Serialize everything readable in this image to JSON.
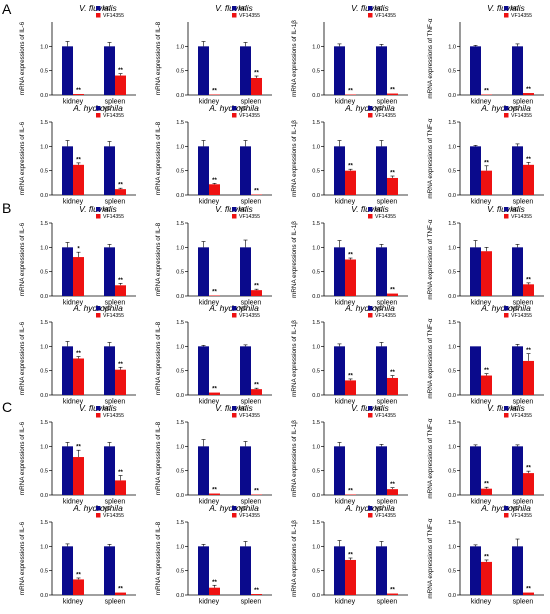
{
  "panel_letters": [
    "A",
    "B",
    "C"
  ],
  "colors": {
    "NC": "#0a0a8c",
    "VF14355": "#ee1111"
  },
  "chart_data": [
    {
      "panel": "A",
      "title": "V. fluvialis",
      "ylabel": "mRNA expressions of IL-6",
      "categories": [
        "kidney",
        "spleen"
      ],
      "series": [
        {
          "name": "NC",
          "values": [
            1.0,
            1.0
          ]
        },
        {
          "name": "VF14355",
          "values": [
            0.02,
            0.4
          ]
        }
      ],
      "errors": [
        [
          0.1,
          0.08
        ],
        [
          0.01,
          0.04
        ]
      ],
      "sig": [
        "**",
        "**"
      ],
      "yticks": [
        "0.0",
        "0.5",
        "1.0"
      ],
      "ylim": [
        0,
        1.5
      ]
    },
    {
      "panel": "A",
      "title": "V. fluvialis",
      "ylabel": "mRNA expressions of IL-8",
      "categories": [
        "kidney",
        "spleen"
      ],
      "series": [
        {
          "name": "NC",
          "values": [
            1.0,
            1.0
          ]
        },
        {
          "name": "VF14355",
          "values": [
            0.01,
            0.35
          ]
        }
      ],
      "errors": [
        [
          0.1,
          0.08
        ],
        [
          0.01,
          0.04
        ]
      ],
      "sig": [
        "**",
        "**"
      ],
      "yticks": [
        "0.0",
        "0.5",
        "1.0"
      ],
      "ylim": [
        0,
        1.5
      ]
    },
    {
      "panel": "A",
      "title": "V. fluvialis",
      "ylabel": "mRNA expressions of IL-1β",
      "categories": [
        "kidney",
        "spleen"
      ],
      "series": [
        {
          "name": "NC",
          "values": [
            1.0,
            1.0
          ]
        },
        {
          "name": "VF14355",
          "values": [
            0.01,
            0.03
          ]
        }
      ],
      "errors": [
        [
          0.05,
          0.04
        ],
        [
          0.01,
          0.01
        ]
      ],
      "sig": [
        "**",
        "**"
      ],
      "yticks": [
        "0.0",
        "0.5",
        "1.0"
      ],
      "ylim": [
        0,
        1.5
      ]
    },
    {
      "panel": "A",
      "title": "V. fluvialis",
      "ylabel": "mRNA expressions of TNF-α",
      "categories": [
        "kidney",
        "spleen"
      ],
      "series": [
        {
          "name": "NC",
          "values": [
            1.0,
            1.0
          ]
        },
        {
          "name": "VF14355",
          "values": [
            0.01,
            0.04
          ]
        }
      ],
      "errors": [
        [
          0.02,
          0.05
        ],
        [
          0.01,
          0.01
        ]
      ],
      "sig": [
        "**",
        "**"
      ],
      "yticks": [
        "0.0",
        "0.5",
        "1.0"
      ],
      "ylim": [
        0,
        1.5
      ]
    },
    {
      "panel": "A",
      "title": "A. hydrophila",
      "ylabel": "mRNA expressions of IL-6",
      "categories": [
        "kidney",
        "spleen"
      ],
      "series": [
        {
          "name": "NC",
          "values": [
            1.0,
            1.0
          ]
        },
        {
          "name": "VF14355",
          "values": [
            0.62,
            0.12
          ]
        }
      ],
      "errors": [
        [
          0.12,
          0.1
        ],
        [
          0.04,
          0.02
        ]
      ],
      "sig": [
        "**",
        "**"
      ],
      "yticks": [
        "0.0",
        "0.5",
        "1.0",
        "1.5"
      ],
      "ylim": [
        0,
        1.5
      ]
    },
    {
      "panel": "A",
      "title": "A. hydrophila",
      "ylabel": "mRNA expressions of IL-8",
      "categories": [
        "kidney",
        "spleen"
      ],
      "series": [
        {
          "name": "NC",
          "values": [
            1.0,
            1.0
          ]
        },
        {
          "name": "VF14355",
          "values": [
            0.22,
            0.01
          ]
        }
      ],
      "errors": [
        [
          0.12,
          0.12
        ],
        [
          0.02,
          0.01
        ]
      ],
      "sig": [
        "**",
        "**"
      ],
      "yticks": [
        "0.0",
        "0.5",
        "1.0",
        "1.5"
      ],
      "ylim": [
        0,
        1.5
      ]
    },
    {
      "panel": "A",
      "title": "A. hydrophila",
      "ylabel": "mRNA expressions of IL-1β",
      "categories": [
        "kidney",
        "spleen"
      ],
      "series": [
        {
          "name": "NC",
          "values": [
            1.0,
            1.0
          ]
        },
        {
          "name": "VF14355",
          "values": [
            0.5,
            0.35
          ]
        }
      ],
      "errors": [
        [
          0.12,
          0.12
        ],
        [
          0.03,
          0.04
        ]
      ],
      "sig": [
        "**",
        "**"
      ],
      "yticks": [
        "0.0",
        "0.5",
        "1.0",
        "1.5"
      ],
      "ylim": [
        0,
        1.5
      ]
    },
    {
      "panel": "A",
      "title": "A. hydrophila",
      "ylabel": "mRNA expressions of TNF-α",
      "categories": [
        "kidney",
        "spleen"
      ],
      "series": [
        {
          "name": "NC",
          "values": [
            1.0,
            1.0
          ]
        },
        {
          "name": "VF14355",
          "values": [
            0.5,
            0.62
          ]
        }
      ],
      "errors": [
        [
          0.02,
          0.05
        ],
        [
          0.1,
          0.05
        ]
      ],
      "sig": [
        "**",
        "**"
      ],
      "yticks": [
        "0.0",
        "0.5",
        "1.0",
        "1.5"
      ],
      "ylim": [
        0,
        1.5
      ]
    },
    {
      "panel": "B",
      "title": "V. fluvialis",
      "ylabel": "mRNA expressions of IL-6",
      "categories": [
        "kidney",
        "spleen"
      ],
      "series": [
        {
          "name": "NC",
          "values": [
            1.0,
            1.0
          ]
        },
        {
          "name": "VF14355",
          "values": [
            0.8,
            0.22
          ]
        }
      ],
      "errors": [
        [
          0.1,
          0.06
        ],
        [
          0.1,
          0.04
        ]
      ],
      "sig": [
        "*",
        "**"
      ],
      "yticks": [
        "0.0",
        "0.5",
        "1.0",
        "1.5"
      ],
      "ylim": [
        0,
        1.5
      ]
    },
    {
      "panel": "B",
      "title": "V. fluvialis",
      "ylabel": "mRNA expressions of IL-8",
      "categories": [
        "kidney",
        "spleen"
      ],
      "series": [
        {
          "name": "NC",
          "values": [
            1.0,
            1.0
          ]
        },
        {
          "name": "VF14355",
          "values": [
            0.01,
            0.12
          ]
        }
      ],
      "errors": [
        [
          0.12,
          0.15
        ],
        [
          0.01,
          0.02
        ]
      ],
      "sig": [
        "**",
        "**"
      ],
      "yticks": [
        "0.0",
        "0.5",
        "1.0",
        "1.5"
      ],
      "ylim": [
        0,
        1.5
      ]
    },
    {
      "panel": "B",
      "title": "V. fluvialis",
      "ylabel": "mRNA expressions of IL-1β",
      "categories": [
        "kidney",
        "spleen"
      ],
      "series": [
        {
          "name": "NC",
          "values": [
            1.0,
            1.0
          ]
        },
        {
          "name": "VF14355",
          "values": [
            0.75,
            0.05
          ]
        }
      ],
      "errors": [
        [
          0.14,
          0.06
        ],
        [
          0.03,
          0.01
        ]
      ],
      "sig": [
        "**",
        "**"
      ],
      "yticks": [
        "0.0",
        "0.5",
        "1.0",
        "1.5"
      ],
      "ylim": [
        0,
        1.5
      ]
    },
    {
      "panel": "B",
      "title": "V. fluvialis",
      "ylabel": "mRNA expressions of TNF-α",
      "categories": [
        "kidney",
        "spleen"
      ],
      "series": [
        {
          "name": "NC",
          "values": [
            1.0,
            1.0
          ]
        },
        {
          "name": "VF14355",
          "values": [
            0.92,
            0.24
          ]
        }
      ],
      "errors": [
        [
          0.14,
          0.06
        ],
        [
          0.08,
          0.03
        ]
      ],
      "sig": [
        "",
        "**"
      ],
      "yticks": [
        "0.0",
        "0.5",
        "1.0",
        "1.5"
      ],
      "ylim": [
        0,
        1.5
      ]
    },
    {
      "panel": "B",
      "title": "A. hydrophila",
      "ylabel": "mRNA expressions of IL-6",
      "categories": [
        "kidney",
        "spleen"
      ],
      "series": [
        {
          "name": "NC",
          "values": [
            1.0,
            1.0
          ]
        },
        {
          "name": "VF14355",
          "values": [
            0.75,
            0.52
          ]
        }
      ],
      "errors": [
        [
          0.1,
          0.08
        ],
        [
          0.04,
          0.05
        ]
      ],
      "sig": [
        "**",
        "**"
      ],
      "yticks": [
        "0.0",
        "0.5",
        "1.0",
        "1.5"
      ],
      "ylim": [
        0,
        1.5
      ]
    },
    {
      "panel": "B",
      "title": "A. hydrophila",
      "ylabel": "mRNA expressions of IL-8",
      "categories": [
        "kidney",
        "spleen"
      ],
      "series": [
        {
          "name": "NC",
          "values": [
            1.0,
            1.0
          ]
        },
        {
          "name": "VF14355",
          "values": [
            0.05,
            0.12
          ]
        }
      ],
      "errors": [
        [
          0.02,
          0.03
        ],
        [
          0.01,
          0.02
        ]
      ],
      "sig": [
        "**",
        "**"
      ],
      "yticks": [
        "0.0",
        "0.5",
        "1.0",
        "1.5"
      ],
      "ylim": [
        0,
        1.5
      ]
    },
    {
      "panel": "B",
      "title": "A. hydrophila",
      "ylabel": "mRNA expressions of IL-1β",
      "categories": [
        "kidney",
        "spleen"
      ],
      "series": [
        {
          "name": "NC",
          "values": [
            1.0,
            1.0
          ]
        },
        {
          "name": "VF14355",
          "values": [
            0.3,
            0.35
          ]
        }
      ],
      "errors": [
        [
          0.05,
          0.08
        ],
        [
          0.03,
          0.05
        ]
      ],
      "sig": [
        "**",
        "**"
      ],
      "yticks": [
        "0.0",
        "0.5",
        "1.0",
        "1.5"
      ],
      "ylim": [
        0,
        1.5
      ]
    },
    {
      "panel": "B",
      "title": "A. hydrophila",
      "ylabel": "mRNA expressions of TNF-α",
      "categories": [
        "kidney",
        "spleen"
      ],
      "series": [
        {
          "name": "NC",
          "values": [
            1.0,
            1.0
          ]
        },
        {
          "name": "VF14355",
          "values": [
            0.4,
            0.7
          ]
        }
      ],
      "errors": [
        [
          0.01,
          0.04
        ],
        [
          0.04,
          0.15
        ]
      ],
      "sig": [
        "**",
        "**"
      ],
      "yticks": [
        "0.0",
        "0.5",
        "1.0",
        "1.5"
      ],
      "ylim": [
        0,
        1.5
      ]
    },
    {
      "panel": "C",
      "title": "V. fluvialis",
      "ylabel": "mRNA expressions of IL-6",
      "categories": [
        "kidney",
        "spleen"
      ],
      "series": [
        {
          "name": "NC",
          "values": [
            1.0,
            1.0
          ]
        },
        {
          "name": "VF14355",
          "values": [
            0.78,
            0.3
          ]
        }
      ],
      "errors": [
        [
          0.08,
          0.08
        ],
        [
          0.14,
          0.1
        ]
      ],
      "sig": [
        "**",
        "**"
      ],
      "yticks": [
        "0.0",
        "0.5",
        "1.0",
        "1.5"
      ],
      "ylim": [
        0,
        1.5
      ]
    },
    {
      "panel": "C",
      "title": "V. fluvialis",
      "ylabel": "mRNA expressions of IL-8",
      "categories": [
        "kidney",
        "spleen"
      ],
      "series": [
        {
          "name": "NC",
          "values": [
            1.0,
            1.0
          ]
        },
        {
          "name": "VF14355",
          "values": [
            0.03,
            0.01
          ]
        }
      ],
      "errors": [
        [
          0.14,
          0.1
        ],
        [
          0.01,
          0.01
        ]
      ],
      "sig": [
        "**",
        "**"
      ],
      "yticks": [
        "0.0",
        "0.5",
        "1.0",
        "1.5"
      ],
      "ylim": [
        0,
        1.5
      ]
    },
    {
      "panel": "C",
      "title": "V. fluvialis",
      "ylabel": "mRNA expressions of IL-1β",
      "categories": [
        "kidney",
        "spleen"
      ],
      "series": [
        {
          "name": "NC",
          "values": [
            1.0,
            1.0
          ]
        },
        {
          "name": "VF14355",
          "values": [
            0.01,
            0.12
          ]
        }
      ],
      "errors": [
        [
          0.08,
          0.04
        ],
        [
          0.01,
          0.03
        ]
      ],
      "sig": [
        "**",
        "**"
      ],
      "yticks": [
        "0.0",
        "0.5",
        "1.0",
        "1.5"
      ],
      "ylim": [
        0,
        1.5
      ]
    },
    {
      "panel": "C",
      "title": "V. fluvialis",
      "ylabel": "mRNA expressions of TNF-α",
      "categories": [
        "kidney",
        "spleen"
      ],
      "series": [
        {
          "name": "NC",
          "values": [
            1.0,
            1.0
          ]
        },
        {
          "name": "VF14355",
          "values": [
            0.13,
            0.45
          ]
        }
      ],
      "errors": [
        [
          0.03,
          0.03
        ],
        [
          0.03,
          0.04
        ]
      ],
      "sig": [
        "**",
        "**"
      ],
      "yticks": [
        "0.0",
        "0.5",
        "1.0",
        "1.5"
      ],
      "ylim": [
        0,
        1.5
      ]
    },
    {
      "panel": "C",
      "title": "A. hydrophila",
      "ylabel": "mRNA expressions of IL-6",
      "categories": [
        "kidney",
        "spleen"
      ],
      "series": [
        {
          "name": "NC",
          "values": [
            1.0,
            1.0
          ]
        },
        {
          "name": "VF14355",
          "values": [
            0.32,
            0.05
          ]
        }
      ],
      "errors": [
        [
          0.05,
          0.04
        ],
        [
          0.03,
          0.01
        ]
      ],
      "sig": [
        "**",
        "**"
      ],
      "yticks": [
        "0.0",
        "0.5",
        "1.0",
        "1.5"
      ],
      "ylim": [
        0,
        1.5
      ]
    },
    {
      "panel": "C",
      "title": "A. hydrophila",
      "ylabel": "mRNA expressions of IL-8",
      "categories": [
        "kidney",
        "spleen"
      ],
      "series": [
        {
          "name": "NC",
          "values": [
            1.0,
            1.0
          ]
        },
        {
          "name": "VF14355",
          "values": [
            0.15,
            0.02
          ]
        }
      ],
      "errors": [
        [
          0.04,
          0.1
        ],
        [
          0.05,
          0.01
        ]
      ],
      "sig": [
        "**",
        "**"
      ],
      "yticks": [
        "0.0",
        "0.5",
        "1.0",
        "1.5"
      ],
      "ylim": [
        0,
        1.5
      ]
    },
    {
      "panel": "C",
      "title": "A. hydrophila",
      "ylabel": "mRNA expressions of IL-1β",
      "categories": [
        "kidney",
        "spleen"
      ],
      "series": [
        {
          "name": "NC",
          "values": [
            1.0,
            1.0
          ]
        },
        {
          "name": "VF14355",
          "values": [
            0.72,
            0.03
          ]
        }
      ],
      "errors": [
        [
          0.12,
          0.1
        ],
        [
          0.04,
          0.01
        ]
      ],
      "sig": [
        "**",
        "**"
      ],
      "yticks": [
        "0.0",
        "0.5",
        "1.0",
        "1.5"
      ],
      "ylim": [
        0,
        1.5
      ]
    },
    {
      "panel": "C",
      "title": "A. hydrophila",
      "ylabel": "mRNA expressions of TNF-α",
      "categories": [
        "kidney",
        "spleen"
      ],
      "series": [
        {
          "name": "NC",
          "values": [
            1.0,
            1.0
          ]
        },
        {
          "name": "VF14355",
          "values": [
            0.68,
            0.05
          ]
        }
      ],
      "errors": [
        [
          0.03,
          0.15
        ],
        [
          0.04,
          0.01
        ]
      ],
      "sig": [
        "**",
        "**"
      ],
      "yticks": [
        "0.0",
        "0.5",
        "1.0",
        "1.5"
      ],
      "ylim": [
        0,
        1.5
      ]
    }
  ]
}
